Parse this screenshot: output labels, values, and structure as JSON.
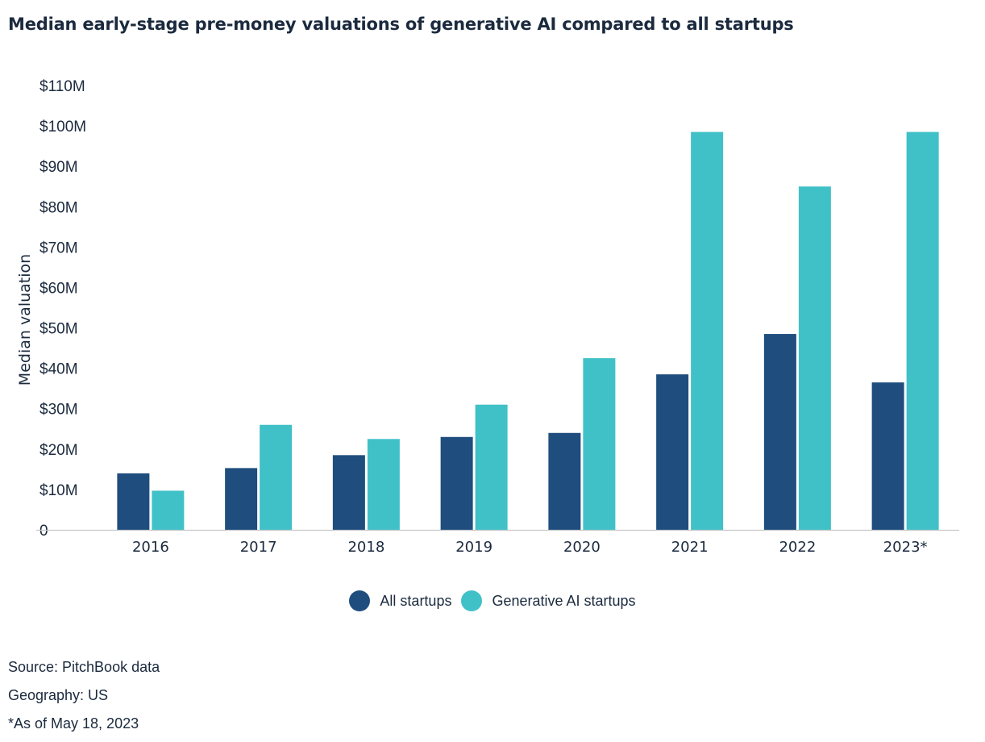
{
  "title": "Median early-stage pre-money valuations of generative AI compared to all startups",
  "chart_data": {
    "type": "bar",
    "title": "Median early-stage pre-money valuations of generative AI compared to all startups",
    "xlabel": "",
    "ylabel": "Median valuation",
    "categories": [
      "2016",
      "2017",
      "2018",
      "2019",
      "2020",
      "2021",
      "2022",
      "2023*"
    ],
    "series": [
      {
        "name": "All startups",
        "color": "#1f4e7e",
        "values": [
          14,
          15.3,
          18.5,
          23,
          24,
          38.5,
          48.5,
          36.5
        ]
      },
      {
        "name": "Generative AI startups",
        "color": "#40c1c7",
        "values": [
          9.7,
          26,
          22.5,
          31,
          42.5,
          98.5,
          85,
          98.5
        ]
      }
    ],
    "ylim": [
      0,
      110
    ],
    "yticks": [
      0,
      10,
      20,
      30,
      40,
      50,
      60,
      70,
      80,
      90,
      100,
      110
    ],
    "ytick_labels": [
      "0",
      "$10M",
      "$20M",
      "$30M",
      "$40M",
      "$50M",
      "$60M",
      "$70M",
      "$80M",
      "$90M",
      "$100M",
      "$110M"
    ],
    "grid": false,
    "legend_position": "bottom"
  },
  "notes": [
    "Source: PitchBook data",
    "Geography: US",
    "*As of May 18, 2023"
  ]
}
